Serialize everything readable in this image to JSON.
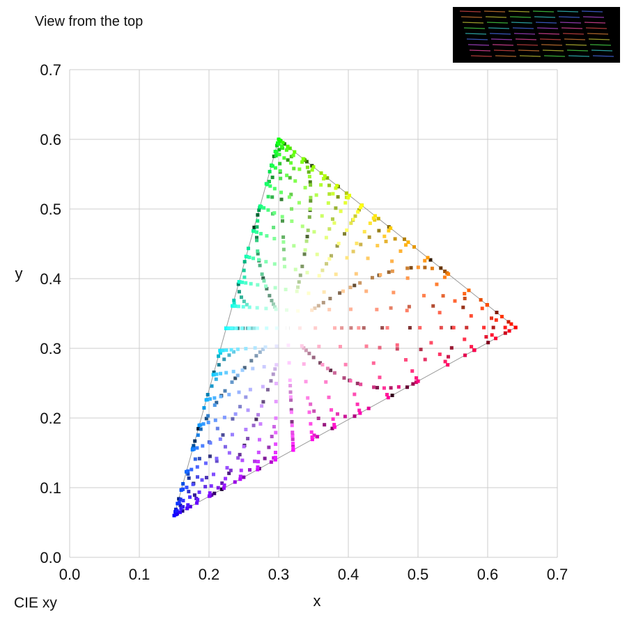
{
  "page": {
    "top_caption": "View from the top",
    "bottom_caption": "CIE xy"
  },
  "chart_data": {
    "type": "scatter",
    "title": "",
    "xlabel": "x",
    "ylabel": "y",
    "xlim": [
      0.0,
      0.7
    ],
    "ylim": [
      0.0,
      0.7
    ],
    "x_ticks": [
      "0.0",
      "0.1",
      "0.2",
      "0.3",
      "0.4",
      "0.5",
      "0.6",
      "0.7"
    ],
    "y_ticks": [
      "0.0",
      "0.1",
      "0.2",
      "0.3",
      "0.4",
      "0.5",
      "0.6",
      "0.7"
    ],
    "grid": true,
    "gamut_triangle": [
      [
        0.64,
        0.33
      ],
      [
        0.3,
        0.6
      ],
      [
        0.15,
        0.06
      ]
    ],
    "white_point": [
      0.3127,
      0.329
    ],
    "colors": {
      "grid": "#cccccc",
      "triangle": "#999999",
      "thumbnail_bg": "#000000"
    }
  }
}
